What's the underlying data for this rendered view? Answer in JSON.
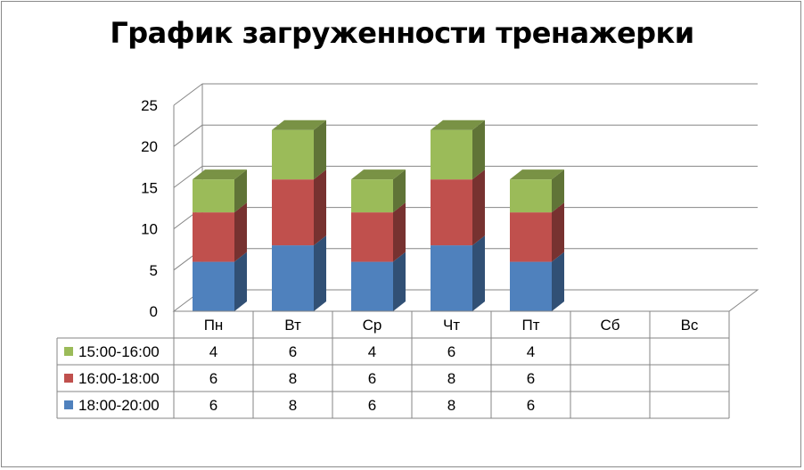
{
  "chart_data": {
    "type": "bar",
    "stacked": true,
    "three_d": true,
    "title": "График загруженности  тренажерки",
    "categories": [
      "Пн",
      "Вт",
      "Ср",
      "Чт",
      "Пт",
      "Сб",
      "Вс"
    ],
    "series": [
      {
        "name": "18:00-20:00",
        "color": "#4f81bd",
        "values": [
          6,
          8,
          6,
          8,
          6,
          null,
          null
        ]
      },
      {
        "name": "16:00-18:00",
        "color": "#c0504d",
        "values": [
          6,
          8,
          6,
          8,
          6,
          null,
          null
        ]
      },
      {
        "name": "15:00-16:00",
        "color": "#9bbb59",
        "values": [
          4,
          6,
          4,
          6,
          4,
          null,
          null
        ]
      }
    ],
    "table_order": [
      "15:00-16:00",
      "16:00-18:00",
      "18:00-20:00"
    ],
    "ylim": [
      0,
      25
    ],
    "yticks": [
      0,
      5,
      10,
      15,
      20,
      25
    ],
    "xlabel": "",
    "ylabel": "",
    "grid": true,
    "legend": "data-table"
  }
}
